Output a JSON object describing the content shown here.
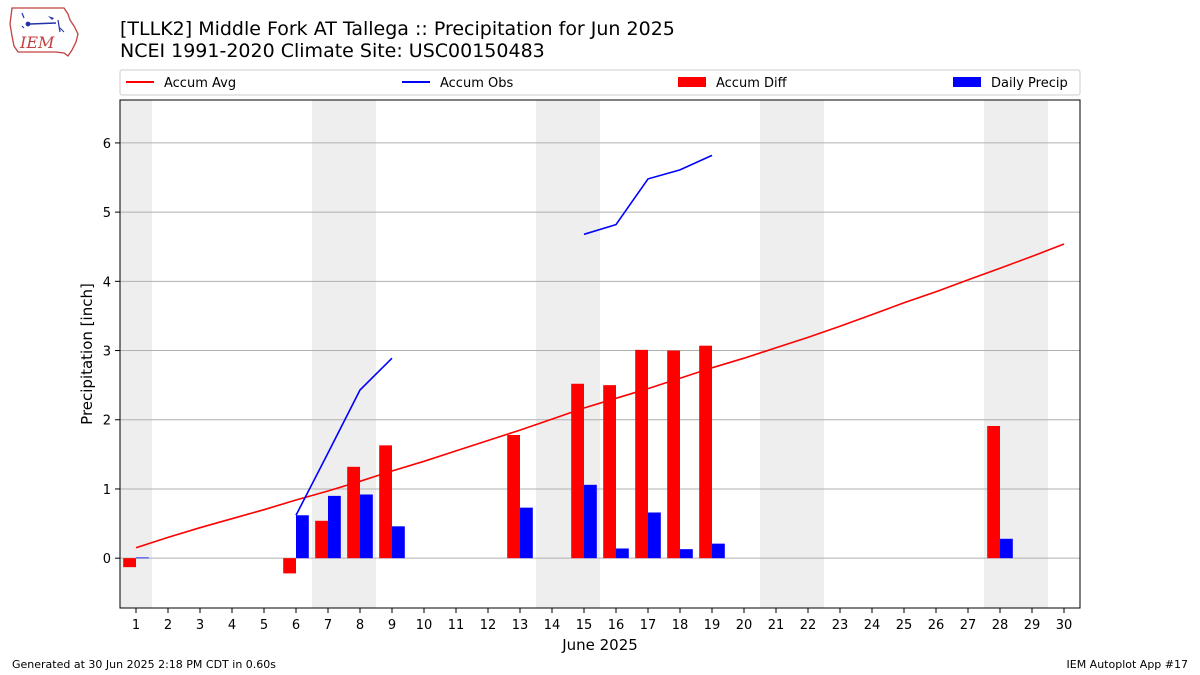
{
  "header": {
    "title_line1": "[TLLK2] Middle Fork  AT Tallega :: Precipitation for Jun 2025",
    "title_line2": "NCEI 1991-2020 Climate Site: USC00150483",
    "logo_text": "IEM"
  },
  "footer": {
    "generated": "Generated at 30 Jun 2025 2:18 PM CDT in 0.60s",
    "app": "IEM Autoplot App #17"
  },
  "colors": {
    "avg": "#ff0000",
    "obs": "#0000ff",
    "diff": "#ff0000",
    "daily": "#0000ff",
    "weekend_shade": "#eeeeee",
    "grid": "#b0b0b0"
  },
  "chart_data": {
    "type": "bar",
    "xlabel": "June 2025",
    "ylabel": "Precipitation [inch]",
    "xlim": [
      0.5,
      30.5
    ],
    "ylim": [
      -0.72,
      6.62
    ],
    "grid": true,
    "legend_placement": "top",
    "x": [
      1,
      2,
      3,
      4,
      5,
      6,
      7,
      8,
      9,
      10,
      11,
      12,
      13,
      14,
      15,
      16,
      17,
      18,
      19,
      20,
      21,
      22,
      23,
      24,
      25,
      26,
      27,
      28,
      29,
      30
    ],
    "x_tick_labels": [
      "1",
      "2",
      "3",
      "4",
      "5",
      "6",
      "7",
      "8",
      "9",
      "10",
      "11",
      "12",
      "13",
      "14",
      "15",
      "16",
      "17",
      "18",
      "19",
      "20",
      "21",
      "22",
      "23",
      "24",
      "25",
      "26",
      "27",
      "28",
      "29",
      "30"
    ],
    "y_ticks": [
      0,
      1,
      2,
      3,
      4,
      5,
      6
    ],
    "y_tick_labels": [
      "0",
      "1",
      "2",
      "3",
      "4",
      "5",
      "6"
    ],
    "shaded_days": [
      [
        0.5,
        1.5
      ],
      [
        6.5,
        8.5
      ],
      [
        13.5,
        15.5
      ],
      [
        20.5,
        22.5
      ],
      [
        27.5,
        29.5
      ]
    ],
    "series": [
      {
        "name": "Accum Avg",
        "kind": "line",
        "x": [
          1,
          2,
          3,
          4,
          5,
          6,
          7,
          8,
          9,
          10,
          11,
          12,
          13,
          14,
          15,
          16,
          17,
          18,
          19,
          20,
          21,
          22,
          23,
          24,
          25,
          26,
          27,
          28,
          29,
          30
        ],
        "values": [
          0.15,
          0.3,
          0.44,
          0.57,
          0.7,
          0.84,
          0.97,
          1.11,
          1.26,
          1.4,
          1.55,
          1.7,
          1.85,
          2.01,
          2.17,
          2.31,
          2.45,
          2.6,
          2.75,
          2.89,
          3.04,
          3.19,
          3.35,
          3.52,
          3.69,
          3.85,
          4.02,
          4.19,
          4.36,
          4.54
        ]
      },
      {
        "name": "Accum Obs",
        "kind": "line",
        "x": [
          1,
          2,
          3,
          4,
          5,
          6,
          7,
          8,
          9,
          10,
          11,
          12,
          13,
          14,
          15,
          16,
          17,
          18,
          19,
          20,
          21,
          22,
          23,
          24,
          25,
          26,
          27,
          28,
          29,
          30
        ],
        "values": [
          null,
          null,
          null,
          null,
          null,
          0.62,
          1.52,
          2.43,
          2.89,
          null,
          null,
          null,
          null,
          null,
          4.68,
          4.82,
          5.48,
          5.61,
          5.82,
          null,
          null,
          null,
          null,
          null,
          null,
          null,
          null,
          null,
          null,
          null
        ]
      },
      {
        "name": "Accum Diff",
        "kind": "bar",
        "x": [
          1,
          6,
          7,
          8,
          9,
          13,
          15,
          16,
          17,
          18,
          19,
          28
        ],
        "values": [
          -0.13,
          -0.22,
          0.54,
          1.32,
          1.63,
          1.78,
          2.52,
          2.5,
          3.01,
          3.0,
          3.07,
          1.91
        ]
      },
      {
        "name": "Daily Precip",
        "kind": "bar",
        "x": [
          1,
          6,
          7,
          8,
          9,
          13,
          15,
          16,
          17,
          18,
          19,
          28
        ],
        "values": [
          0.01,
          0.62,
          0.9,
          0.92,
          0.46,
          0.73,
          1.06,
          0.14,
          0.66,
          0.13,
          0.21,
          0.28
        ]
      }
    ]
  }
}
